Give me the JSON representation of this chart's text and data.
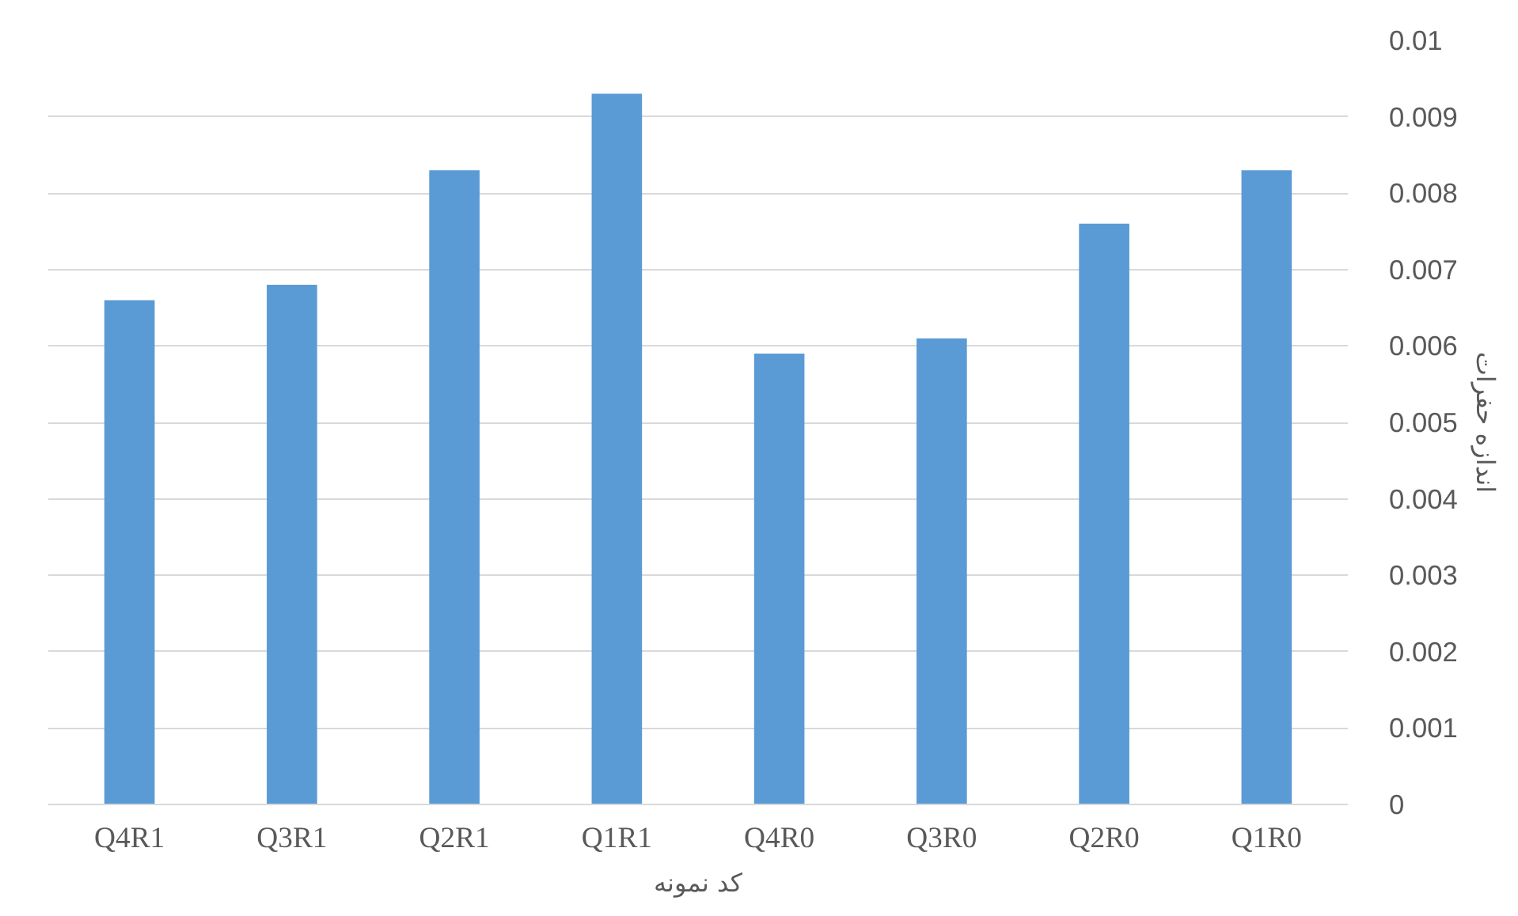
{
  "chart_data": {
    "type": "bar",
    "xlabel": "کد نمونه",
    "ylabel": "اندازه حفرات",
    "categories": [
      "Q4R1",
      "Q3R1",
      "Q2R1",
      "Q1R1",
      "Q4R0",
      "Q3R0",
      "Q2R0",
      "Q1R0"
    ],
    "values": [
      0.0066,
      0.0068,
      0.0083,
      0.0093,
      0.0059,
      0.0061,
      0.0076,
      0.0083
    ],
    "color": "#5b9bd5",
    "ylim": [
      0,
      0.01
    ],
    "yticks": [
      0,
      0.001,
      0.002,
      0.003,
      0.004,
      0.005,
      0.006,
      0.007,
      0.008,
      0.009,
      0.01
    ],
    "grid": "y"
  }
}
